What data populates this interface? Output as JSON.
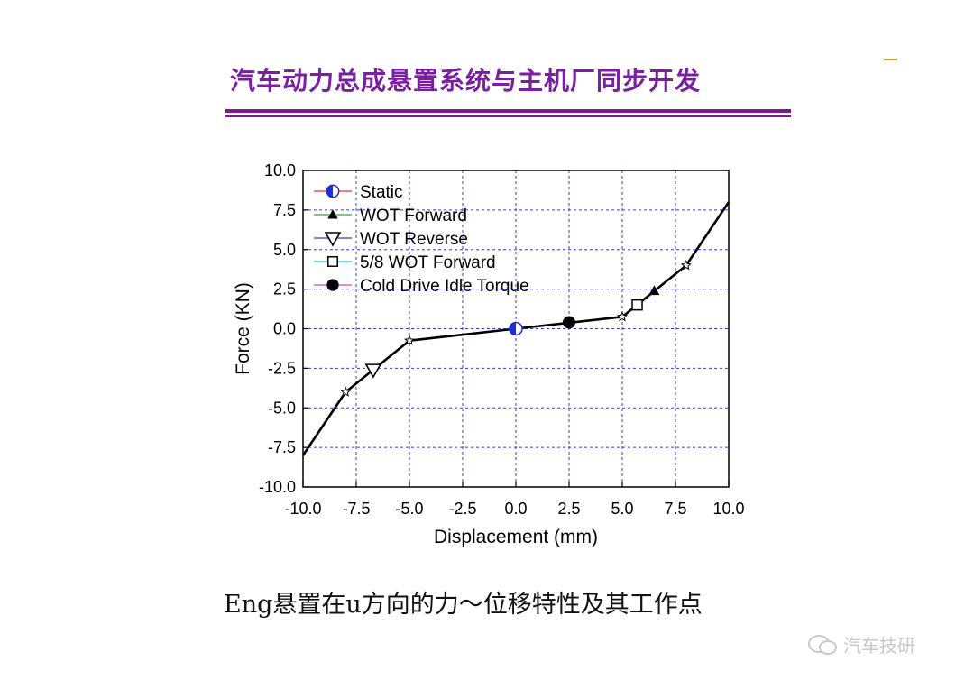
{
  "slide": {
    "title": "汽车动力总成悬置系统与主机厂同步开发",
    "caption": "Eng悬置在u方向的力～位移特性及其工作点",
    "watermark": "汽车技研"
  },
  "colors": {
    "title": "#7b1fa2",
    "rule": "#7b1a8a",
    "grid": "#3a3acc",
    "curve": "#000000",
    "static_marker": "#1f2fd6"
  },
  "chart_data": {
    "type": "line",
    "xlabel": "Displacement (mm)",
    "ylabel": "Force (KN)",
    "xlim": [
      -10,
      10
    ],
    "ylim": [
      -10,
      10
    ],
    "xticks": [
      -10,
      -7.5,
      -5,
      -2.5,
      0,
      2.5,
      5,
      7.5,
      10
    ],
    "yticks": [
      -10,
      -7.5,
      -5,
      -2.5,
      0,
      2.5,
      5,
      7.5,
      10
    ],
    "xtick_labels": [
      "-10.0",
      "-7.5",
      "-5.0",
      "-2.5",
      "0.0",
      "2.5",
      "5.0",
      "7.5",
      "10.0"
    ],
    "ytick_labels": [
      "-10.0",
      "-7.5",
      "-5.0",
      "-2.5",
      "0.0",
      "2.5",
      "5.0",
      "7.5",
      "10.0"
    ],
    "grid": true,
    "legend_position": "top-left",
    "curve": {
      "x": [
        -10,
        -8,
        -5,
        0,
        5,
        8,
        10
      ],
      "y": [
        -8,
        -4,
        -0.75,
        0,
        0.75,
        4,
        8
      ]
    },
    "series": [
      {
        "name": "Static",
        "marker": "half-filled-circle",
        "line_color": "#e03030",
        "x": [
          0
        ],
        "y": [
          0
        ]
      },
      {
        "name": "WOT Forward",
        "marker": "filled-triangle-up",
        "line_color": "#2ea82e",
        "x": [
          6.5
        ],
        "y": [
          2.4
        ]
      },
      {
        "name": "WOT Reverse",
        "marker": "open-triangle-down",
        "line_color": "#3a3acc",
        "x": [
          -6.7
        ],
        "y": [
          -2.6
        ]
      },
      {
        "name": "5/8 WOT Forward",
        "marker": "open-square",
        "line_color": "#19c3d8",
        "x": [
          5.7
        ],
        "y": [
          1.5
        ]
      },
      {
        "name": "Cold Drive Idle Torque",
        "marker": "filled-circle",
        "line_color": "#d845c8",
        "x": [
          2.5
        ],
        "y": [
          0.4
        ]
      }
    ]
  }
}
